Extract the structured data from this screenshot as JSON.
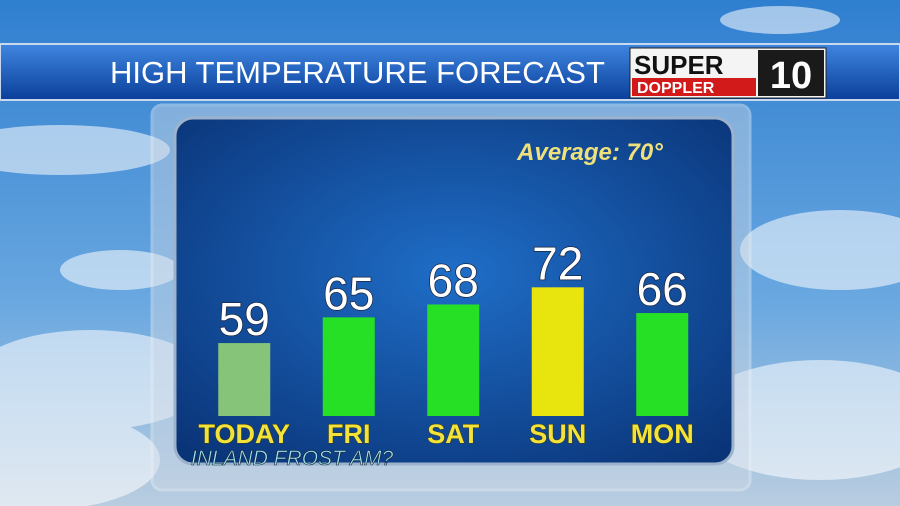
{
  "header": {
    "title": "HIGH TEMPERATURE FORECAST"
  },
  "logo": {
    "line1": "SUPER",
    "line2": "DOPPLER",
    "number": "10"
  },
  "chart_data": {
    "type": "bar",
    "annotations": [
      "Average: 70°",
      "INLAND FROST AM?"
    ],
    "categories": [
      "TODAY",
      "FRI",
      "SAT",
      "SUN",
      "MON"
    ],
    "values": [
      59,
      65,
      68,
      72,
      66
    ],
    "colors": [
      "#86c47a",
      "#26e026",
      "#26e026",
      "#e8e40e",
      "#26e026"
    ],
    "ylim": [
      42,
      80
    ]
  }
}
